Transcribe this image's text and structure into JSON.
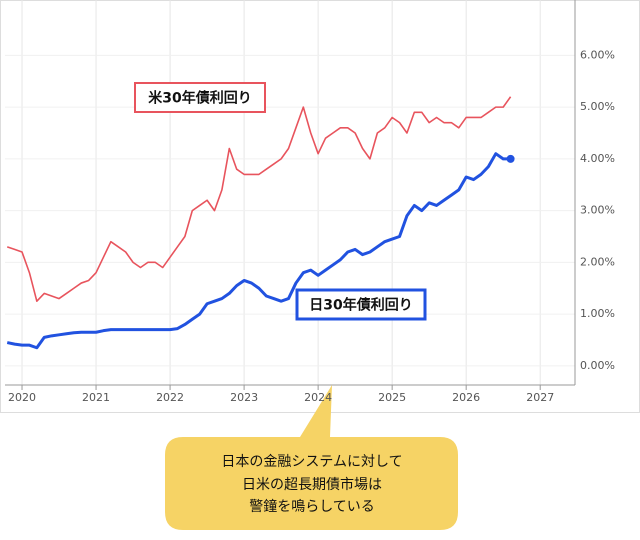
{
  "chart_data": {
    "type": "line",
    "x": [
      2019.8,
      2019.9,
      2020.0,
      2020.1,
      2020.2,
      2020.3,
      2020.4,
      2020.5,
      2020.6,
      2020.7,
      2020.8,
      2020.9,
      2021.0,
      2021.1,
      2021.2,
      2021.3,
      2021.4,
      2021.5,
      2021.6,
      2021.7,
      2021.8,
      2021.9,
      2022.0,
      2022.1,
      2022.2,
      2022.3,
      2022.4,
      2022.5,
      2022.6,
      2022.7,
      2022.8,
      2022.9,
      2023.0,
      2023.1,
      2023.2,
      2023.3,
      2023.4,
      2023.5,
      2023.6,
      2023.7,
      2023.8,
      2023.9,
      2024.0,
      2024.1,
      2024.2,
      2024.3,
      2024.4,
      2024.5,
      2024.6,
      2024.7,
      2024.8,
      2024.9,
      2025.0,
      2025.1,
      2025.2,
      2025.3,
      2025.4,
      2025.5,
      2025.6,
      2025.7,
      2025.8,
      2025.9,
      2026.0,
      2026.1,
      2026.2,
      2026.3,
      2026.4,
      2026.5,
      2026.6
    ],
    "series": [
      {
        "name": "米30年債利回り",
        "color": "#e8545d",
        "values": [
          2.3,
          2.25,
          2.2,
          1.8,
          1.25,
          1.4,
          1.35,
          1.3,
          1.4,
          1.5,
          1.6,
          1.65,
          1.8,
          2.1,
          2.4,
          2.3,
          2.2,
          2.0,
          1.9,
          2.0,
          2.0,
          1.9,
          2.1,
          2.3,
          2.5,
          3.0,
          3.1,
          3.2,
          3.0,
          3.4,
          4.2,
          3.8,
          3.7,
          3.7,
          3.7,
          3.8,
          3.9,
          4.0,
          4.2,
          4.6,
          5.0,
          4.5,
          4.1,
          4.4,
          4.5,
          4.6,
          4.6,
          4.5,
          4.2,
          4.0,
          4.5,
          4.6,
          4.8,
          4.7,
          4.5,
          4.9,
          4.9,
          4.7,
          4.8,
          4.7,
          4.7,
          4.6,
          4.8,
          4.8,
          4.8,
          4.9,
          5.0,
          5.0,
          5.2
        ]
      },
      {
        "name": "日30年債利回り",
        "color": "#2152e0",
        "values": [
          0.45,
          0.42,
          0.4,
          0.4,
          0.35,
          0.55,
          0.58,
          0.6,
          0.62,
          0.64,
          0.65,
          0.65,
          0.65,
          0.68,
          0.7,
          0.7,
          0.7,
          0.7,
          0.7,
          0.7,
          0.7,
          0.7,
          0.7,
          0.72,
          0.8,
          0.9,
          1.0,
          1.2,
          1.25,
          1.3,
          1.4,
          1.55,
          1.65,
          1.6,
          1.5,
          1.35,
          1.3,
          1.25,
          1.3,
          1.6,
          1.8,
          1.85,
          1.75,
          1.85,
          1.95,
          2.05,
          2.2,
          2.25,
          2.15,
          2.2,
          2.3,
          2.4,
          2.45,
          2.5,
          2.9,
          3.1,
          3.0,
          3.15,
          3.1,
          3.2,
          3.3,
          3.4,
          3.65,
          3.6,
          3.7,
          3.85,
          4.1,
          4.0,
          4.0
        ]
      }
    ],
    "xlim": [
      2019.77,
      2027.47
    ],
    "xticks": [
      2020,
      2021,
      2022,
      2023,
      2024,
      2025,
      2026,
      2027
    ],
    "ylim": [
      -0.37,
      7.07
    ],
    "yticks": [
      {
        "value": 0,
        "label": "0.00%"
      },
      {
        "value": 1,
        "label": "1.00%"
      },
      {
        "value": 2,
        "label": "2.00%"
      },
      {
        "value": 3,
        "label": "3.00%"
      },
      {
        "value": 4,
        "label": "4.00%"
      },
      {
        "value": 5,
        "label": "5.00%"
      },
      {
        "value": 6,
        "label": "6.00%"
      }
    ],
    "grid": true,
    "annotation": [
      "日本の金融システムに対して",
      "日米の超長期債市場は",
      "警鐘を鳴らしている"
    ]
  }
}
